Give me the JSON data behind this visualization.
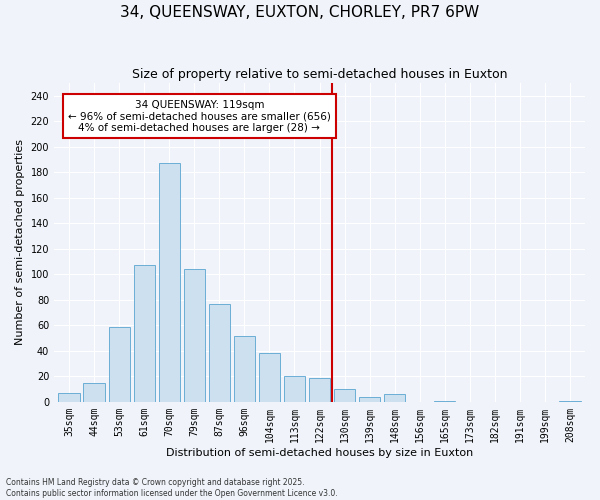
{
  "title": "34, QUEENSWAY, EUXTON, CHORLEY, PR7 6PW",
  "subtitle": "Size of property relative to semi-detached houses in Euxton",
  "xlabel": "Distribution of semi-detached houses by size in Euxton",
  "ylabel": "Number of semi-detached properties",
  "categories": [
    "35sqm",
    "44sqm",
    "53sqm",
    "61sqm",
    "70sqm",
    "79sqm",
    "87sqm",
    "96sqm",
    "104sqm",
    "113sqm",
    "122sqm",
    "130sqm",
    "139sqm",
    "148sqm",
    "156sqm",
    "165sqm",
    "173sqm",
    "182sqm",
    "191sqm",
    "199sqm",
    "208sqm"
  ],
  "values": [
    7,
    15,
    59,
    107,
    187,
    104,
    77,
    52,
    38,
    20,
    19,
    10,
    4,
    6,
    0,
    1,
    0,
    0,
    0,
    0,
    1
  ],
  "bar_color": "#cce0f0",
  "bar_edge_color": "#6baed6",
  "fig_background_color": "#f0f4fa",
  "ax_background_color": "#f0f4fa",
  "grid_color": "#ffffff",
  "vline_x": 10.5,
  "vline_color": "#cc0000",
  "annotation_text": "34 QUEENSWAY: 119sqm\n← 96% of semi-detached houses are smaller (656)\n4% of semi-detached houses are larger (28) →",
  "annotation_box_edge_color": "#cc0000",
  "ylim": [
    0,
    250
  ],
  "yticks": [
    0,
    20,
    40,
    60,
    80,
    100,
    120,
    140,
    160,
    180,
    200,
    220,
    240
  ],
  "footer": "Contains HM Land Registry data © Crown copyright and database right 2025.\nContains public sector information licensed under the Open Government Licence v3.0.",
  "title_fontsize": 11,
  "subtitle_fontsize": 9,
  "tick_fontsize": 7,
  "ylabel_fontsize": 8,
  "xlabel_fontsize": 8,
  "footer_fontsize": 5.5,
  "ann_fontsize": 7.5
}
